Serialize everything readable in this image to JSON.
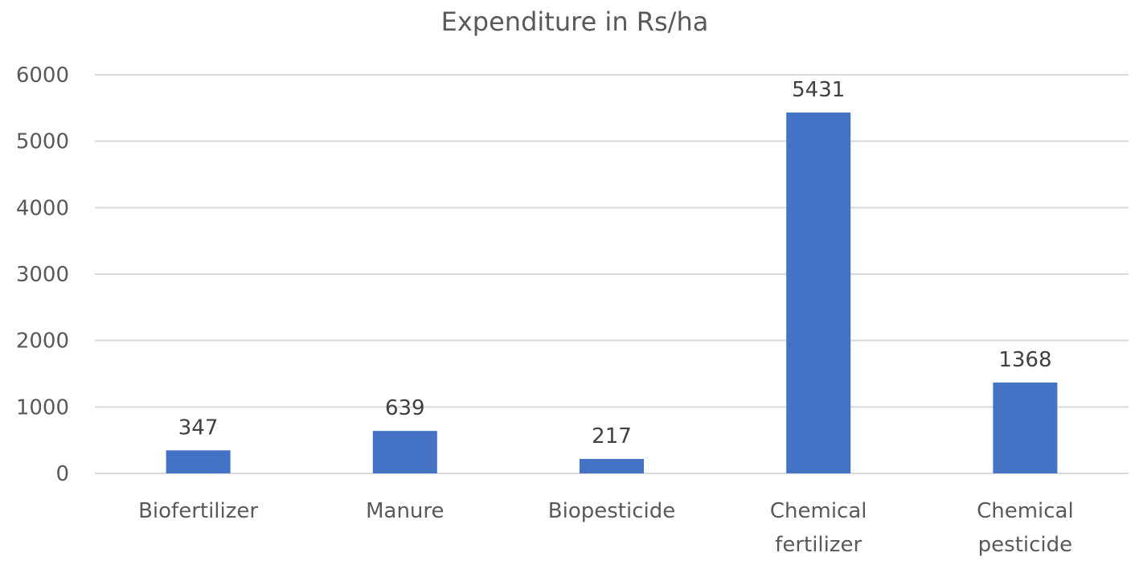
{
  "chart_data": {
    "type": "bar",
    "title": "Expenditure in Rs/ha",
    "categories": [
      [
        "Biofertilizer"
      ],
      [
        "Manure"
      ],
      [
        "Biopesticide"
      ],
      [
        "Chemical",
        "fertilizer"
      ],
      [
        "Chemical",
        "pesticide"
      ]
    ],
    "values": [
      347,
      639,
      217,
      5431,
      1368
    ],
    "data_labels": [
      "347",
      "639",
      "217",
      "5431",
      "1368"
    ],
    "ylim": [
      0,
      6000
    ],
    "yticks": [
      0,
      1000,
      2000,
      3000,
      4000,
      5000,
      6000
    ],
    "ytick_labels": [
      "0",
      "1000",
      "2000",
      "3000",
      "4000",
      "5000",
      "6000"
    ],
    "grid": true,
    "legend": "none",
    "colors": {
      "bar": "#4472C4",
      "grid": "#D9D9D9",
      "text": "#595959",
      "data_label": "#404040"
    }
  }
}
